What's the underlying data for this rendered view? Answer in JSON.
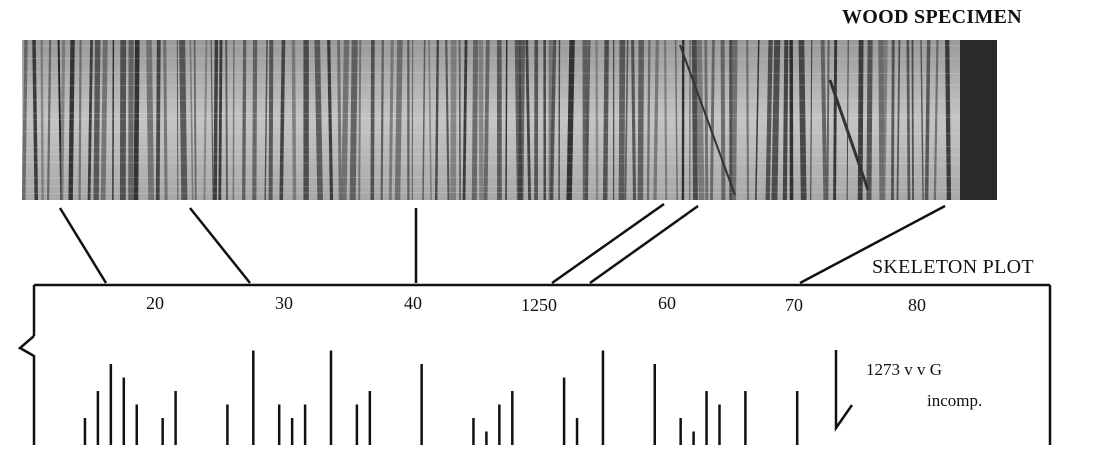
{
  "specimen_label": "WOOD SPECIMEN",
  "plot_label": "SKELETON PLOT",
  "ticks": [
    {
      "label": "20"
    },
    {
      "label": "30"
    },
    {
      "label": "40"
    },
    {
      "label": "1250"
    },
    {
      "label": "60"
    },
    {
      "label": "70"
    },
    {
      "label": "80"
    }
  ],
  "annotation": {
    "line1": "1273   v v G",
    "line2": "incomp."
  },
  "colors": {
    "ink": "#111111",
    "wood_light": "#b8b8b8",
    "wood_dark": "#2a2a2a"
  },
  "skeleton_bars": [
    {
      "year_index": 1,
      "strength": 2
    },
    {
      "year_index": 2,
      "strength": 4
    },
    {
      "year_index": 3,
      "strength": 6
    },
    {
      "year_index": 4,
      "strength": 5
    },
    {
      "year_index": 5,
      "strength": 3
    },
    {
      "year_index": 7,
      "strength": 2
    },
    {
      "year_index": 8,
      "strength": 4
    },
    {
      "year_index": 12,
      "strength": 3
    },
    {
      "year_index": 14,
      "strength": 7
    },
    {
      "year_index": 16,
      "strength": 3
    },
    {
      "year_index": 17,
      "strength": 2
    },
    {
      "year_index": 18,
      "strength": 3
    },
    {
      "year_index": 20,
      "strength": 7
    },
    {
      "year_index": 22,
      "strength": 3
    },
    {
      "year_index": 23,
      "strength": 4
    },
    {
      "year_index": 27,
      "strength": 6
    },
    {
      "year_index": 31,
      "strength": 2
    },
    {
      "year_index": 32,
      "strength": 1
    },
    {
      "year_index": 33,
      "strength": 3
    },
    {
      "year_index": 34,
      "strength": 4
    },
    {
      "year_index": 38,
      "strength": 5
    },
    {
      "year_index": 39,
      "strength": 2
    },
    {
      "year_index": 41,
      "strength": 7
    },
    {
      "year_index": 45,
      "strength": 6
    },
    {
      "year_index": 47,
      "strength": 2
    },
    {
      "year_index": 48,
      "strength": 1
    },
    {
      "year_index": 49,
      "strength": 4
    },
    {
      "year_index": 50,
      "strength": 3
    },
    {
      "year_index": 52,
      "strength": 4
    },
    {
      "year_index": 56,
      "strength": 4
    }
  ]
}
